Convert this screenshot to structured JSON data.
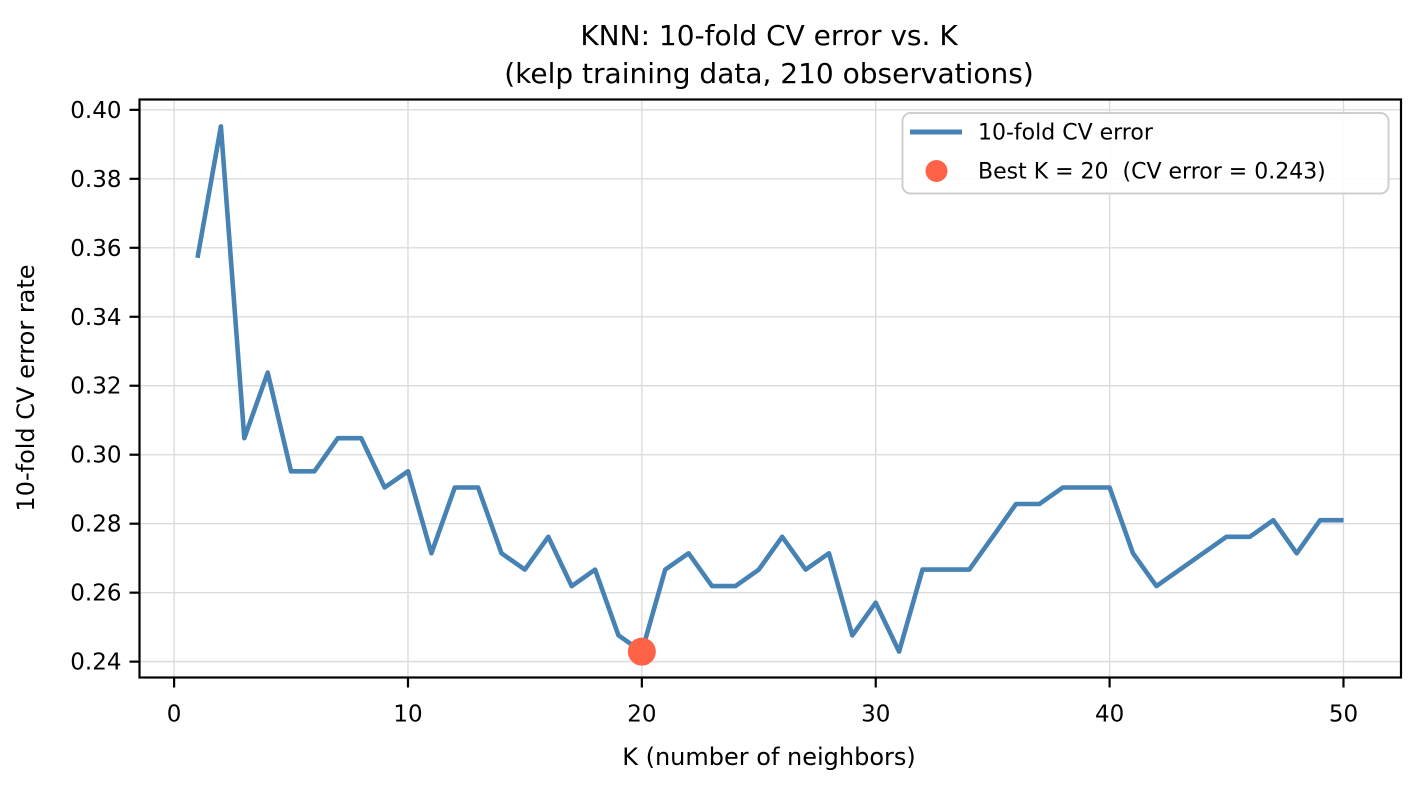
{
  "figure": {
    "kind": "matplotlib-line-chart"
  },
  "chart_data": {
    "type": "line",
    "title": "KNN: 10-fold CV error vs. K",
    "subtitle": "(kelp training data, 210 observations)",
    "xlabel": "K (number of neighbors)",
    "ylabel": "10-fold CV error rate",
    "x": [
      1,
      2,
      3,
      4,
      5,
      6,
      7,
      8,
      9,
      10,
      11,
      12,
      13,
      14,
      15,
      16,
      17,
      18,
      19,
      20,
      21,
      22,
      23,
      24,
      25,
      26,
      27,
      28,
      29,
      30,
      31,
      32,
      33,
      34,
      35,
      36,
      37,
      38,
      39,
      40,
      41,
      42,
      43,
      44,
      45,
      46,
      47,
      48,
      49,
      50
    ],
    "series": [
      {
        "name": "10-fold CV error",
        "color": "#4682B4",
        "values": [
          0.3571,
          0.3952,
          0.3048,
          0.3238,
          0.2952,
          0.2952,
          0.3048,
          0.3048,
          0.2905,
          0.2952,
          0.2714,
          0.2905,
          0.2905,
          0.2714,
          0.2667,
          0.2762,
          0.2619,
          0.2667,
          0.2476,
          0.2429,
          0.2667,
          0.2714,
          0.2619,
          0.2619,
          0.2667,
          0.2762,
          0.2667,
          0.2714,
          0.2476,
          0.2571,
          0.2429,
          0.2667,
          0.2667,
          0.2667,
          0.2762,
          0.2857,
          0.2857,
          0.2905,
          0.2905,
          0.2905,
          0.2714,
          0.2619,
          0.2667,
          0.2714,
          0.2762,
          0.2762,
          0.281,
          0.2714,
          0.281,
          0.281
        ]
      }
    ],
    "best_point": {
      "k": 20,
      "value": 0.2429,
      "color": "#FF6347",
      "label": "Best K = 20  (CV error = 0.243)"
    },
    "xticks": {
      "values": [
        0,
        10,
        20,
        30,
        40,
        50
      ],
      "labels": [
        "0",
        "10",
        "20",
        "30",
        "40",
        "50"
      ]
    },
    "yticks": {
      "values": [
        0.24,
        0.26,
        0.28,
        0.3,
        0.32,
        0.34,
        0.36,
        0.38,
        0.4
      ],
      "labels": [
        "0.24",
        "0.26",
        "0.28",
        "0.30",
        "0.32",
        "0.34",
        "0.36",
        "0.38",
        "0.40"
      ]
    },
    "xlim": [
      -1.48,
      52.46
    ],
    "ylim": [
      0.2354,
      0.403
    ],
    "grid": true,
    "grid_color": "#dcdcdc",
    "spine_color": "#000000",
    "background": "#ffffff",
    "legend_position": "upper right"
  }
}
